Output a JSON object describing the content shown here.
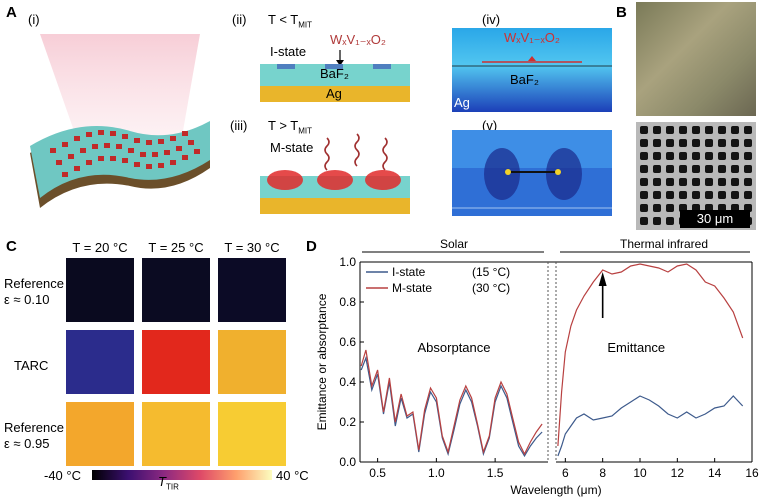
{
  "panelA": {
    "letter": "A",
    "i": "(i)",
    "ii": "(ii)",
    "iii": "(iii)",
    "iv": "(iv)",
    "v": "(v)",
    "ii_cond": "T < T",
    "ii_cond_sub": "MIT",
    "ii_state": "I-state",
    "formula": "WₓV₁₋ₓO₂",
    "baf2": "BaF₂",
    "ag": "Ag",
    "iii_cond": "T > T",
    "iii_cond_sub": "MIT",
    "iii_state": "M-state",
    "iv_formula": "WₓV₁₋ₓO₂",
    "iv_baf2": "BaF₂",
    "iv_ag": "Ag"
  },
  "panelB": {
    "letter": "B",
    "scale": "30 μm"
  },
  "panelC": {
    "letter": "C",
    "temps": [
      "T = 20 °C",
      "T = 25 °C",
      "T = 30 °C"
    ],
    "rows": [
      {
        "label1": "Reference",
        "label2": "ε ≈ 0.10",
        "colors": [
          "#0a0a1f",
          "#0b0b22",
          "#0c0b26"
        ]
      },
      {
        "label1": "TARC",
        "label2": "",
        "colors": [
          "#2b2c8c",
          "#e2281c",
          "#f0b02e"
        ]
      },
      {
        "label1": "Reference",
        "label2": "ε ≈ 0.95",
        "colors": [
          "#f3a72c",
          "#f5bb2f",
          "#f7cc33"
        ]
      }
    ],
    "cbar_min": "-40 °C",
    "cbar_max": "40 °C",
    "cbar_label": "T",
    "cbar_label_sub": "TIR",
    "cbar_colors": [
      "#000000",
      "#3b0f70",
      "#8c2981",
      "#de4968",
      "#fe9f6d",
      "#fcfdbf"
    ]
  },
  "panelD": {
    "letter": "D",
    "solar_label": "Solar",
    "thermal_label": "Thermal infrared",
    "ylabel": "Emittance or absorptance",
    "xlabel": "Wavelength (μm)",
    "absorptance_label": "Absorptance",
    "emittance_label": "Emittance",
    "chart_data": {
      "type": "line",
      "title": "",
      "xlabel": "Wavelength (μm)",
      "ylabel": "Emittance or absorptance",
      "ylim": [
        0,
        1
      ],
      "yticks": [
        "0.0",
        "0.2",
        "0.4",
        "0.6",
        "0.8",
        "1.0"
      ],
      "xticks_left": [
        "0.5",
        "1.0",
        "1.5"
      ],
      "xticks_right": [
        "6",
        "8",
        "10",
        "12",
        "14",
        "16"
      ],
      "xlim_left": [
        0.35,
        1.95
      ],
      "xlim_right": [
        5.5,
        16
      ],
      "legend": [
        {
          "name": "I-state",
          "cond": "(15 °C)",
          "color": "#3d5a8c"
        },
        {
          "name": "M-state",
          "cond": "(30 °C)",
          "color": "#b84040"
        }
      ],
      "series": [
        {
          "name": "I-state",
          "segment": "left",
          "x": [
            0.36,
            0.4,
            0.45,
            0.5,
            0.55,
            0.6,
            0.65,
            0.7,
            0.75,
            0.8,
            0.85,
            0.9,
            0.95,
            1.0,
            1.05,
            1.1,
            1.15,
            1.2,
            1.25,
            1.3,
            1.35,
            1.4,
            1.45,
            1.5,
            1.55,
            1.6,
            1.65,
            1.7,
            1.75,
            1.8,
            1.85,
            1.9
          ],
          "y": [
            0.46,
            0.52,
            0.36,
            0.44,
            0.24,
            0.4,
            0.18,
            0.32,
            0.22,
            0.24,
            0.05,
            0.24,
            0.35,
            0.3,
            0.12,
            0.04,
            0.16,
            0.29,
            0.36,
            0.3,
            0.18,
            0.04,
            0.12,
            0.3,
            0.38,
            0.32,
            0.2,
            0.08,
            0.03,
            0.08,
            0.12,
            0.15
          ]
        },
        {
          "name": "M-state",
          "segment": "left",
          "x": [
            0.36,
            0.4,
            0.45,
            0.5,
            0.55,
            0.6,
            0.65,
            0.7,
            0.75,
            0.8,
            0.85,
            0.9,
            0.95,
            1.0,
            1.05,
            1.1,
            1.15,
            1.2,
            1.25,
            1.3,
            1.35,
            1.4,
            1.45,
            1.5,
            1.55,
            1.6,
            1.65,
            1.7,
            1.75,
            1.8,
            1.85,
            1.9
          ],
          "y": [
            0.48,
            0.56,
            0.38,
            0.46,
            0.25,
            0.42,
            0.2,
            0.34,
            0.23,
            0.25,
            0.06,
            0.26,
            0.37,
            0.32,
            0.13,
            0.05,
            0.18,
            0.31,
            0.38,
            0.32,
            0.19,
            0.05,
            0.13,
            0.32,
            0.4,
            0.34,
            0.22,
            0.1,
            0.04,
            0.1,
            0.15,
            0.19
          ]
        },
        {
          "name": "I-state",
          "segment": "right",
          "x": [
            5.6,
            5.8,
            6.0,
            6.3,
            6.6,
            7.0,
            7.5,
            8.0,
            8.5,
            9.0,
            9.5,
            10.0,
            10.5,
            11.0,
            11.5,
            12.0,
            12.5,
            13.0,
            13.5,
            14.0,
            14.5,
            15.0,
            15.5
          ],
          "y": [
            0.03,
            0.08,
            0.14,
            0.18,
            0.22,
            0.24,
            0.21,
            0.22,
            0.23,
            0.27,
            0.3,
            0.33,
            0.31,
            0.28,
            0.24,
            0.22,
            0.25,
            0.22,
            0.24,
            0.27,
            0.28,
            0.33,
            0.28
          ]
        },
        {
          "name": "M-state",
          "segment": "right",
          "x": [
            5.6,
            5.8,
            6.0,
            6.3,
            6.6,
            7.0,
            7.5,
            8.0,
            8.5,
            9.0,
            9.5,
            10.0,
            10.5,
            11.0,
            11.5,
            12.0,
            12.5,
            13.0,
            13.5,
            14.0,
            14.5,
            15.0,
            15.5
          ],
          "y": [
            0.08,
            0.35,
            0.55,
            0.68,
            0.76,
            0.83,
            0.9,
            0.96,
            0.94,
            0.95,
            0.98,
            0.99,
            0.98,
            0.97,
            0.95,
            0.98,
            0.99,
            0.96,
            0.9,
            0.88,
            0.82,
            0.75,
            0.62
          ]
        }
      ]
    }
  }
}
